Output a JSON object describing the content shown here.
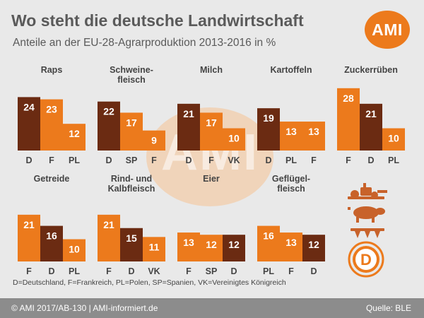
{
  "header": {
    "title": "Wo steht die deutsche Landwirtschaft",
    "subtitle": "Anteile an der EU-28-Agrarproduktion 2013-2016 in %",
    "logo_text": "AMI"
  },
  "watermark_text": "AMI",
  "colors": {
    "germany": "#6b2b12",
    "other": "#ec7a1c",
    "background": "#e9e9e9",
    "footer": "#8c8c8c"
  },
  "chart_data": [
    {
      "type": "bar",
      "title": "Raps",
      "categories": [
        "D",
        "F",
        "PL"
      ],
      "values": [
        24,
        23,
        12
      ]
    },
    {
      "type": "bar",
      "title": "Schweine-\nfleisch",
      "categories": [
        "D",
        "SP",
        "F"
      ],
      "values": [
        22,
        17,
        9
      ]
    },
    {
      "type": "bar",
      "title": "Milch",
      "categories": [
        "D",
        "F",
        "VK"
      ],
      "values": [
        21,
        17,
        10
      ]
    },
    {
      "type": "bar",
      "title": "Kartoffeln",
      "categories": [
        "D",
        "PL",
        "F"
      ],
      "values": [
        19,
        13,
        13
      ]
    },
    {
      "type": "bar",
      "title": "Zuckerrüben",
      "categories": [
        "F",
        "D",
        "PL"
      ],
      "values": [
        28,
        21,
        10
      ]
    },
    {
      "type": "bar",
      "title": "Getreide",
      "categories": [
        "F",
        "D",
        "PL"
      ],
      "values": [
        21,
        16,
        10
      ]
    },
    {
      "type": "bar",
      "title": "Rind- und\nKalbfleisch",
      "categories": [
        "F",
        "D",
        "VK"
      ],
      "values": [
        21,
        15,
        11
      ]
    },
    {
      "type": "bar",
      "title": "Eier",
      "categories": [
        "F",
        "SP",
        "D"
      ],
      "values": [
        13,
        12,
        12
      ]
    },
    {
      "type": "bar",
      "title": "Geflügel-\nfleisch",
      "categories": [
        "PL",
        "F",
        "D"
      ],
      "values": [
        16,
        13,
        12
      ]
    }
  ],
  "legend_text": "D=Deutschland, F=Frankreich, PL=Polen, SP=Spanien, VK=Vereinigtes Königreich",
  "footer": {
    "left": "© AMI 2017/AB-130 | AMI-informiert.de",
    "right": "Quelle: BLE"
  },
  "icons": {
    "tractor": "tractor-icon",
    "pig": "pig-icon",
    "fork": "plow-icon",
    "badge_letter": "D"
  }
}
